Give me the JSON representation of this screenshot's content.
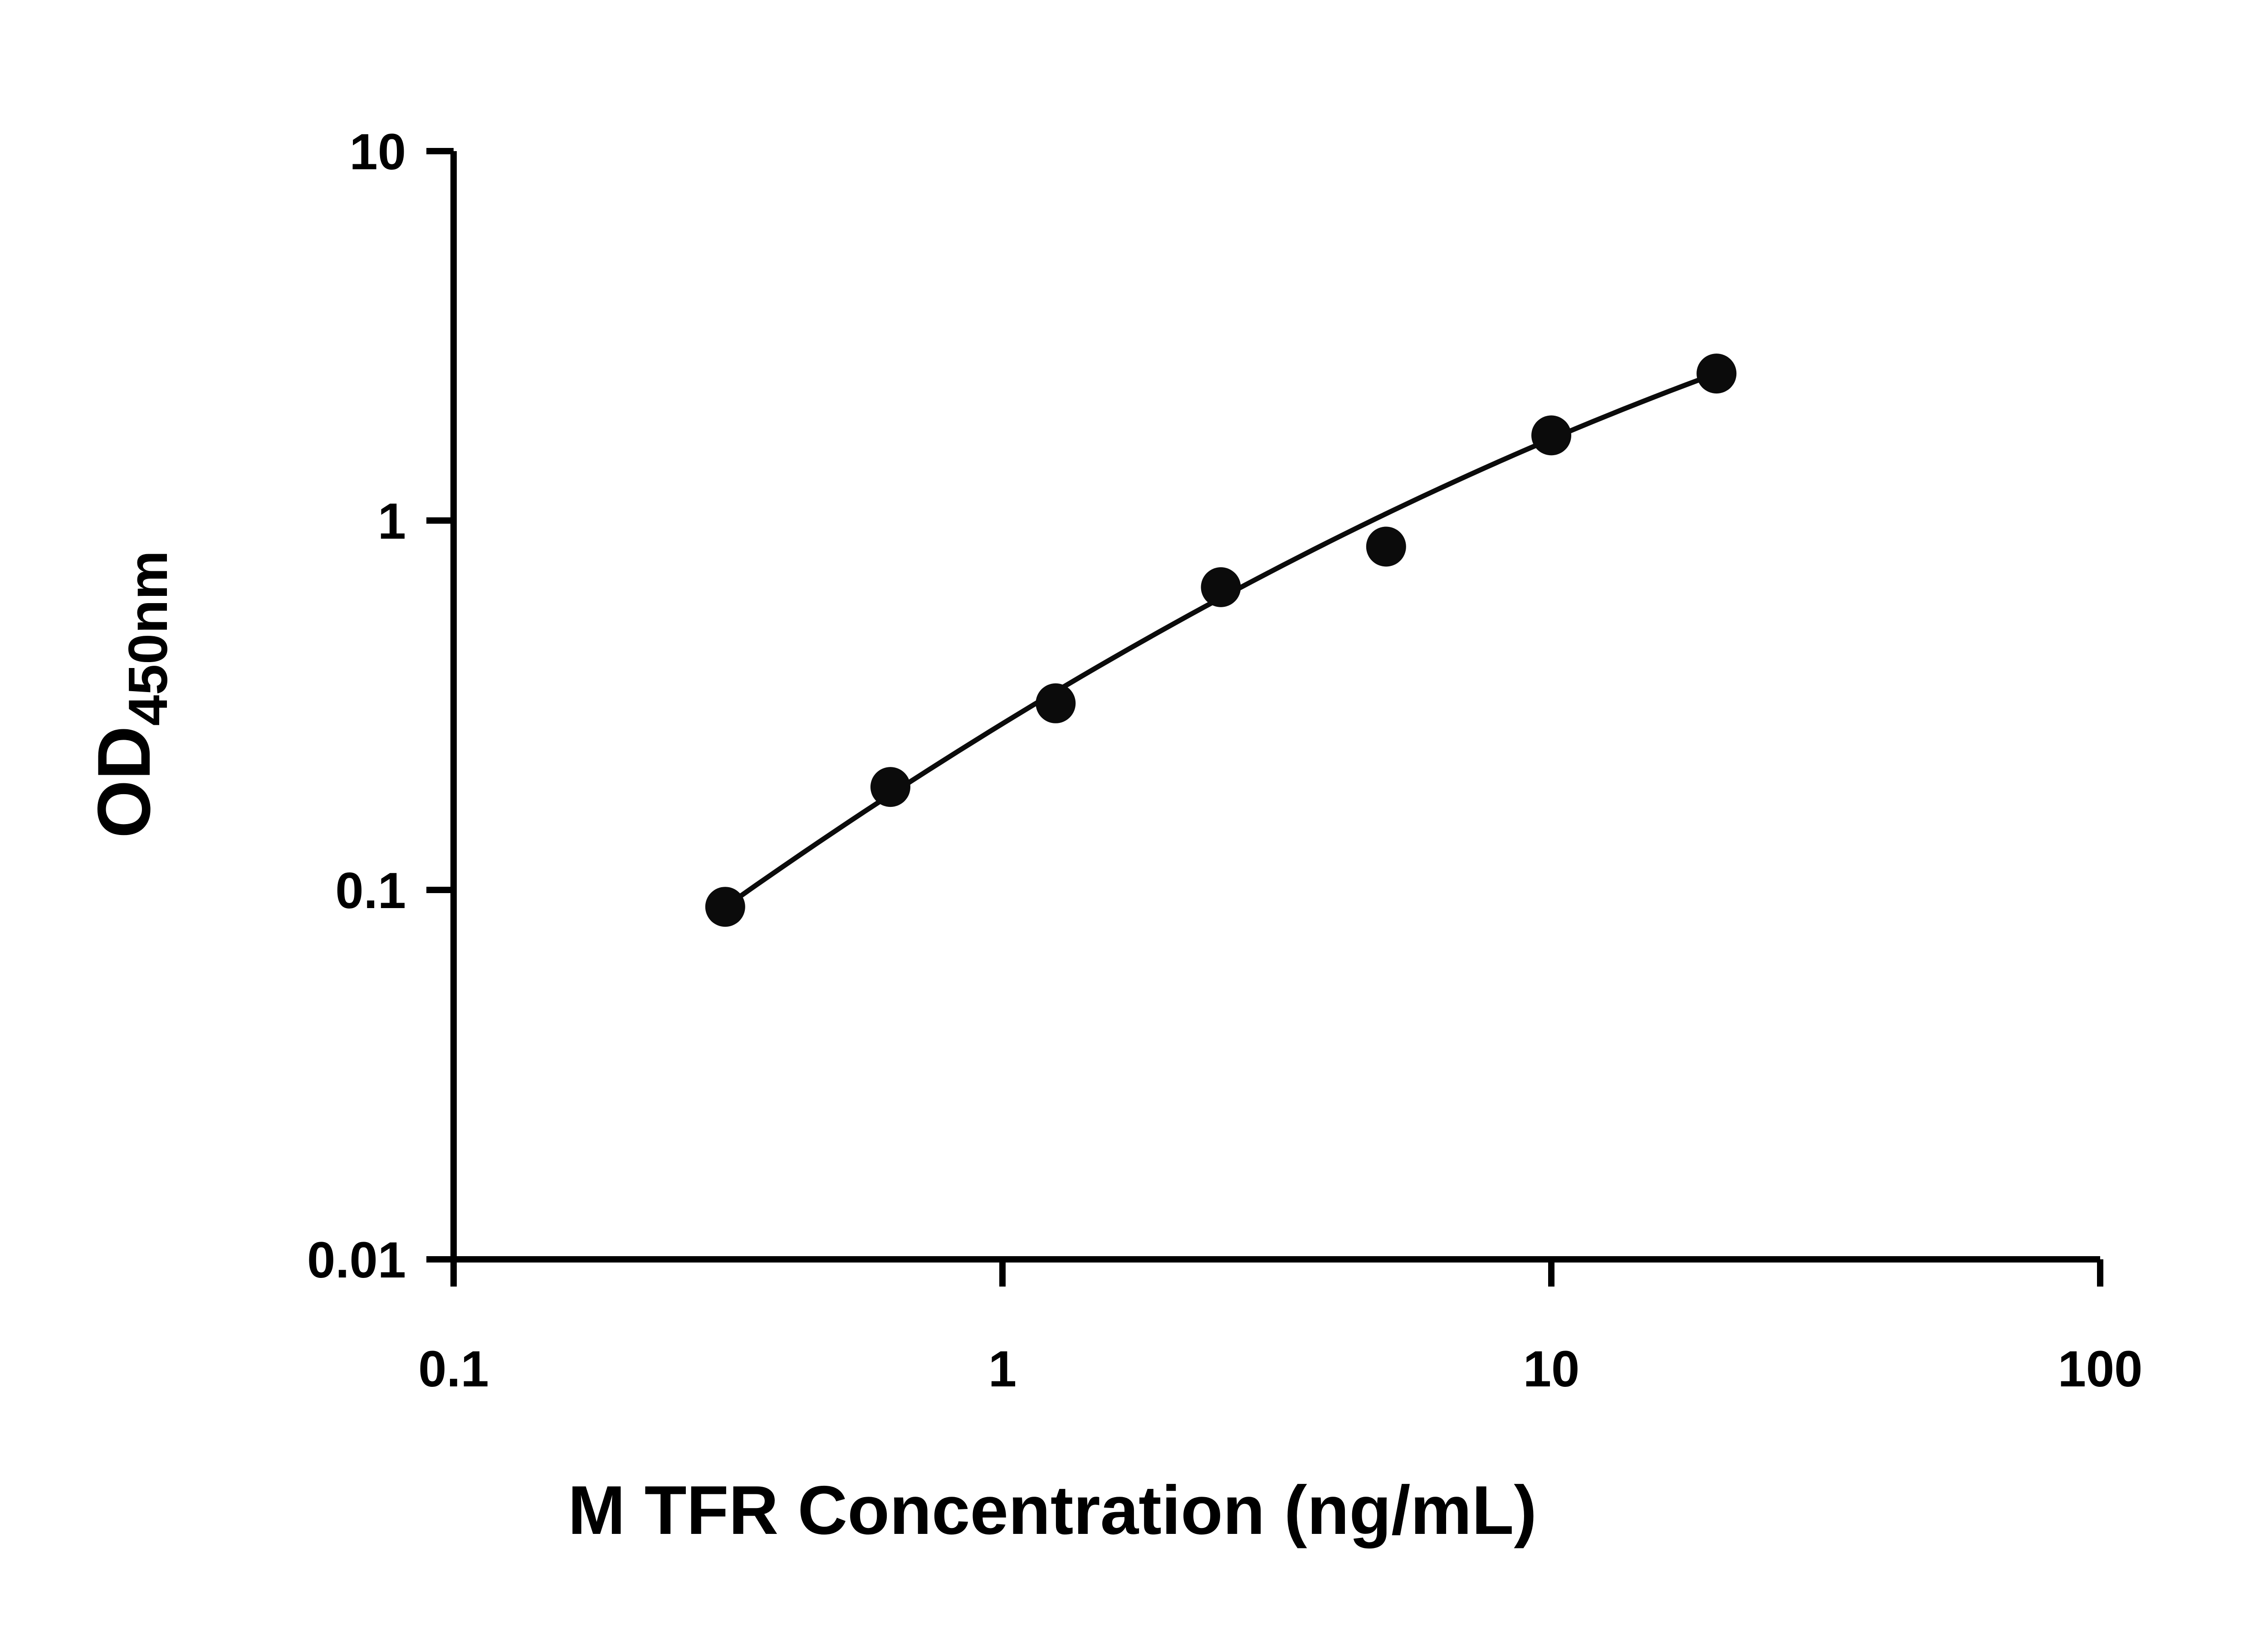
{
  "figure": {
    "background": "#ffffff"
  },
  "chart_data": {
    "type": "scatter",
    "title": "",
    "xlabel": "M TFR Concentration (ng/mL)",
    "ylabel": "OD450nm",
    "ylabel_main": "OD",
    "ylabel_sub": "450nm",
    "x_scale": "log10",
    "y_scale": "log10",
    "xlim": [
      0.1,
      100
    ],
    "ylim": [
      0.01,
      10
    ],
    "x_ticks": [
      {
        "value": 0.1,
        "label": "0.1"
      },
      {
        "value": 1,
        "label": "1"
      },
      {
        "value": 10,
        "label": "10"
      },
      {
        "value": 100,
        "label": "100"
      }
    ],
    "y_ticks": [
      {
        "value": 0.01,
        "label": "0.01"
      },
      {
        "value": 0.1,
        "label": "0.1"
      },
      {
        "value": 1,
        "label": "1"
      },
      {
        "value": 10,
        "label": "10"
      }
    ],
    "grid": false,
    "legend": "none",
    "axis_color": "#000000",
    "marker_color": "#0b0b0b",
    "curve_color": "#0b0b0b",
    "points": [
      {
        "x": 0.3125,
        "y": 0.09
      },
      {
        "x": 0.625,
        "y": 0.19
      },
      {
        "x": 1.25,
        "y": 0.32
      },
      {
        "x": 2.5,
        "y": 0.66
      },
      {
        "x": 5.0,
        "y": 0.85
      },
      {
        "x": 10.0,
        "y": 1.7
      },
      {
        "x": 20.0,
        "y": 2.5
      }
    ],
    "fit_curve": {
      "model": "log10(y) = a*t^2 + b*t + c, where t = log10(x)",
      "a": -0.14,
      "b": 0.911,
      "c": -0.55,
      "t_domain": [
        -0.5051,
        1.301
      ]
    }
  }
}
